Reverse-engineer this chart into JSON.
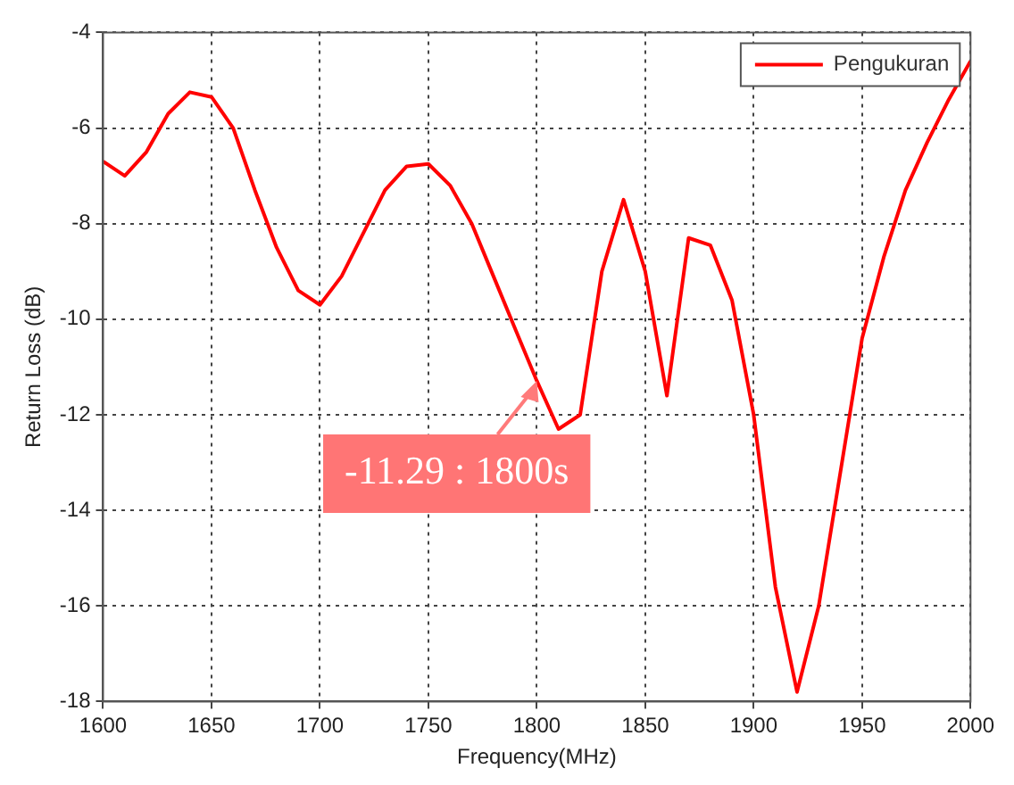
{
  "chart_data": {
    "type": "line",
    "xlabel": "Frequency(MHz)",
    "ylabel": "Return Loss (dB)",
    "xlim": [
      1600,
      2000
    ],
    "xticks": [
      1600,
      1650,
      1700,
      1750,
      1800,
      1850,
      1900,
      1950,
      2000
    ],
    "ylim": [
      -18,
      -4
    ],
    "yticks": [
      -18,
      -16,
      -14,
      -12,
      -10,
      -8,
      -6,
      -4
    ],
    "grid": true,
    "legend": "top right",
    "marker": "none",
    "line_style": "solid",
    "x": [
      1600,
      1610,
      1620,
      1630,
      1640,
      1650,
      1660,
      1670,
      1680,
      1690,
      1700,
      1710,
      1720,
      1730,
      1740,
      1750,
      1760,
      1770,
      1780,
      1790,
      1800,
      1810,
      1820,
      1830,
      1840,
      1850,
      1860,
      1870,
      1880,
      1890,
      1900,
      1910,
      1920,
      1930,
      1940,
      1950,
      1960,
      1970,
      1980,
      1990,
      2000
    ],
    "series": [
      {
        "name": "Pengukuran",
        "color": "#ff0000",
        "values": [
          -6.7,
          -7.0,
          -6.5,
          -5.7,
          -5.25,
          -5.35,
          -6.0,
          -7.3,
          -8.5,
          -9.4,
          -9.7,
          -9.1,
          -8.2,
          -7.3,
          -6.8,
          -6.75,
          -7.2,
          -8.0,
          -9.1,
          -10.2,
          -11.29,
          -12.3,
          -12.0,
          -9.0,
          -7.5,
          -9.0,
          -11.6,
          -8.3,
          -8.45,
          -9.6,
          -12.0,
          -15.6,
          -17.8,
          -16.0,
          -13.2,
          -10.4,
          -8.7,
          -7.3,
          -6.3,
          -5.4,
          -4.6
        ]
      }
    ],
    "annotations": [
      {
        "text": "-11.29 : 1800s",
        "x": 1800,
        "y": -11.29
      }
    ]
  }
}
